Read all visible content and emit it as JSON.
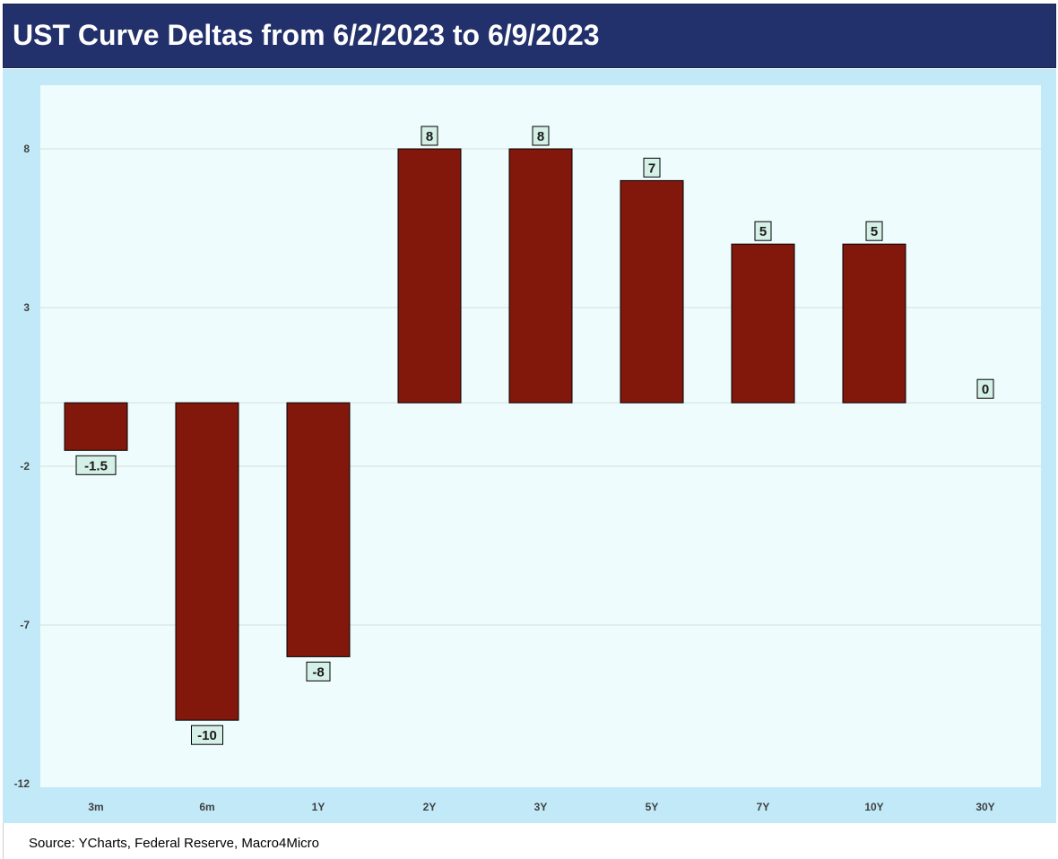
{
  "title": "UST Curve Deltas from 6/2/2023 to 6/9/2023",
  "source": "Source: YCharts, Federal Reserve, Macro4Micro",
  "colors": {
    "title_bg": "#22306b",
    "chart_bg": "#c2e9f8",
    "plot_bg": "#effcfd",
    "bar": "#82180b",
    "label_bg": "#d5f0e6"
  },
  "chart_data": {
    "type": "bar",
    "categories": [
      "3m",
      "6m",
      "1Y",
      "2Y",
      "3Y",
      "5Y",
      "7Y",
      "10Y",
      "30Y"
    ],
    "values": [
      -1.5,
      -10,
      -8,
      8,
      8,
      7,
      5,
      5,
      0
    ],
    "value_labels": [
      "-1.5",
      "-10",
      "-8",
      "8",
      "8",
      "7",
      "5",
      "5",
      "0"
    ],
    "y_ticks": [
      8,
      3,
      -2,
      -7,
      -12
    ],
    "y_tick_labels": [
      "8",
      "3",
      "-2",
      "-7",
      "-12"
    ],
    "ylim": [
      -12,
      10
    ],
    "grid": true,
    "legend": "none"
  }
}
